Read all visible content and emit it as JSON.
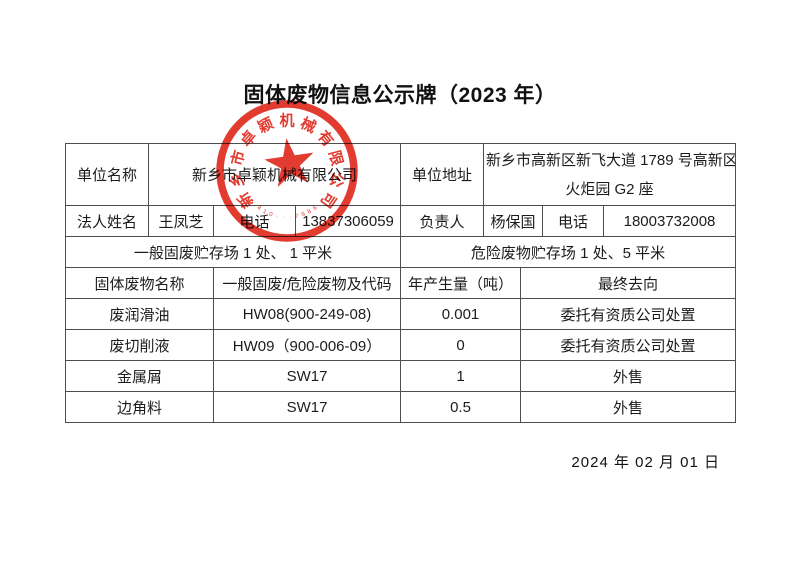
{
  "title": "固体废物信息公示牌（2023 年）",
  "footer_date": "2024 年  02 月 01 日",
  "stamp": {
    "company": "新乡市卓颖机械有限公司",
    "serial": "410···7986",
    "color": "#e02a1e"
  },
  "table": {
    "row_company": {
      "label_name": "单位名称",
      "company_name": "新乡市卓颖机械有限公司",
      "label_address": "单位地址",
      "address_line1": "新乡市高新区新飞大道 1789 号高新区",
      "address_line2": "火炬园 G2 座"
    },
    "row_contacts": {
      "label_legal": "法人姓名",
      "legal_name": "王凤芝",
      "label_phone1": "电话",
      "phone1": "13837306059",
      "label_manager": "负责人",
      "manager_name": "杨保国",
      "label_phone2": "电话",
      "phone2": "18003732008"
    },
    "row_storage": {
      "general": "一般固废贮存场 1 处、 1 平米",
      "hazardous": "危险废物贮存场 1 处、5 平米"
    },
    "header": [
      "固体废物名称",
      "一般固废/危险废物及代码",
      "年产生量（吨）",
      "最终去向"
    ],
    "rows": [
      [
        "废润滑油",
        "HW08(900-249-08)",
        "0.001",
        "委托有资质公司处置"
      ],
      [
        "废切削液",
        "HW09（900-006-09）",
        "0",
        "委托有资质公司处置"
      ],
      [
        "金属屑",
        "SW17",
        "1",
        "外售"
      ],
      [
        "边角料",
        "SW17",
        "0.5",
        "外售"
      ]
    ]
  }
}
